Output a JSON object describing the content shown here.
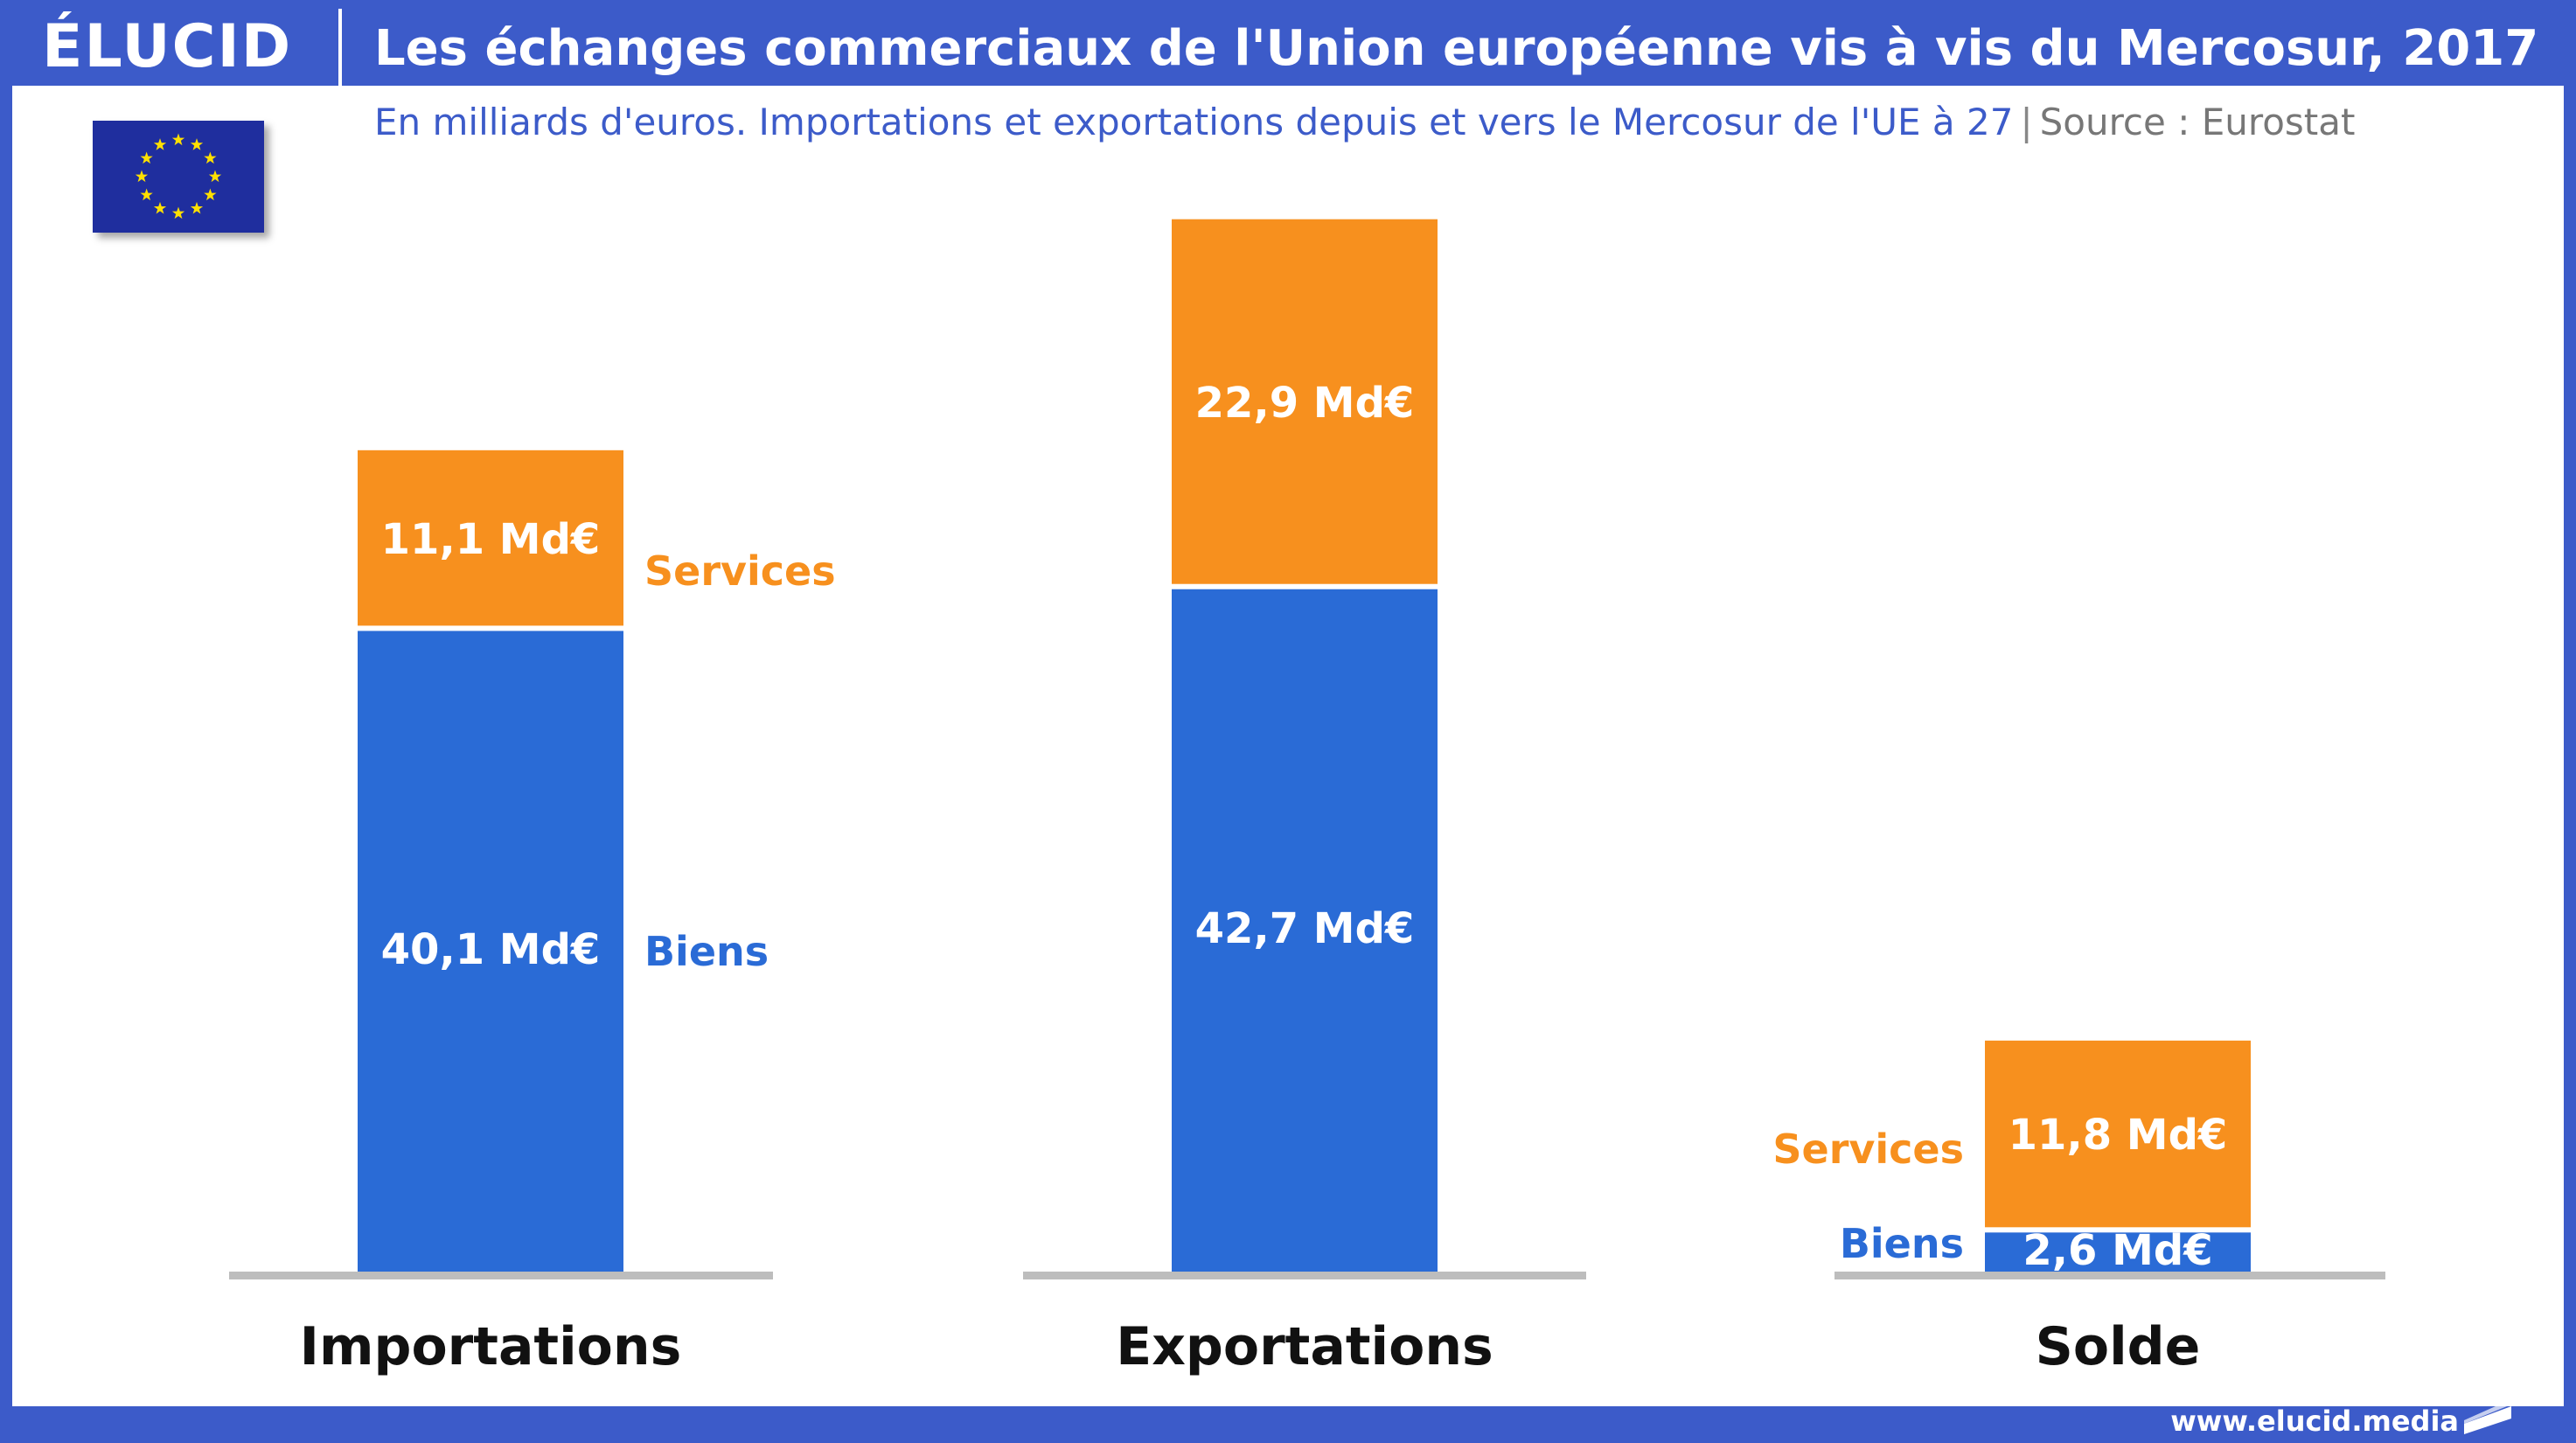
{
  "header": {
    "logo": "ÉLUCID",
    "title": "Les échanges commerciaux de l'Union européenne vis à vis du Mercosur, 2017",
    "subtitle": "En milliards d'euros. Importations et exportations depuis et vers le Mercosur de l'UE à 27",
    "separator": "|",
    "source": "Source : Eurostat"
  },
  "footer": {
    "url": "www.elucid.media"
  },
  "colors": {
    "frame": "#3c5bc9",
    "biens": "#2a6bd6",
    "services": "#f7901e",
    "baseline": "#bdbdbd",
    "flag": "#1f2e9e",
    "star": "#ffe000"
  },
  "icons": {
    "flag": "eu-flag-icon",
    "footer": "elucid-mark-icon"
  },
  "chart_data": {
    "type": "bar",
    "stacked": true,
    "categories": [
      "Importations",
      "Exportations",
      "Solde"
    ],
    "series": [
      {
        "name": "Biens",
        "values": [
          40.1,
          42.7,
          2.6
        ],
        "labels": [
          "40,1 Md€",
          "42,7 Md€",
          "2,6 Md€"
        ]
      },
      {
        "name": "Services",
        "values": [
          11.1,
          22.9,
          11.8
        ],
        "labels": [
          "11,1 Md€",
          "22,9 Md€",
          "11,8 Md€"
        ]
      }
    ],
    "unit": "Md€",
    "ylim": [
      0,
      66.4
    ],
    "grid": false,
    "legend": "series names printed beside the Importations and Solde bars"
  }
}
